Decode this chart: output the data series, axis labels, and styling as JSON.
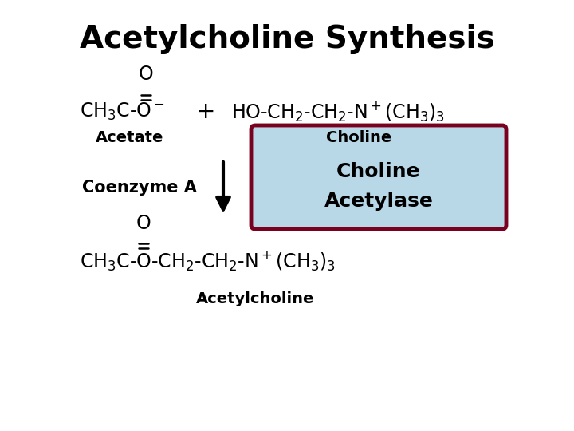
{
  "title": "Acetylcholine Synthesis",
  "title_fontsize": 28,
  "title_fontweight": "bold",
  "bg_color": "#ffffff",
  "text_color": "#000000",
  "box_bg_color": "#b8d8e8",
  "box_border_color": "#7a0020",
  "arrow_color": "#000000",
  "acetate_label": "Acetate",
  "choline_label": "Choline",
  "coenzyme_label": "Coenzyme A",
  "enzyme_line1": "Choline",
  "enzyme_line2": "Acetylase",
  "product_label": "Acetylcholine",
  "label_fontsize": 14,
  "formula_fontsize": 17,
  "enzyme_fontsize": 18
}
